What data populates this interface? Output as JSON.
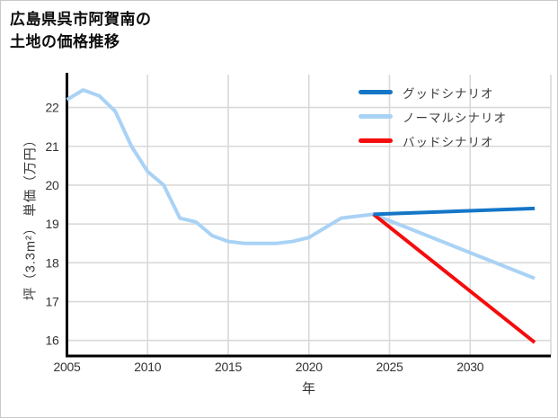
{
  "window": {
    "background": "#ffffff",
    "border_color": "#c9c9c9"
  },
  "header": {
    "title_lines": [
      "広島県呉市阿賀南の",
      "土地の価格推移"
    ]
  },
  "chart_data": {
    "type": "line",
    "title": "広島県呉市阿賀南の土地の価格推移",
    "xlabel": "年",
    "ylabel": "坪（3.3m²） 単価（万円）",
    "x_ticks": [
      2005,
      2010,
      2015,
      2020,
      2025,
      2030
    ],
    "y_ticks": [
      16,
      17,
      18,
      19,
      20,
      21,
      22
    ],
    "xlim": [
      2005,
      2035
    ],
    "ylim": [
      15.6,
      22.8
    ],
    "grid": true,
    "legend_position": "top-right",
    "axis_color": "#000000",
    "grid_color": "#d9d9d9",
    "tick_label_color": "#333333",
    "forecast_start_year": 2024,
    "last_year": 2034,
    "series": [
      {
        "name": "グッドシナリオ",
        "role": "good-scenario-forecast",
        "color": "#1476c7",
        "x": [
          2024,
          2034
        ],
        "y": [
          19.25,
          19.4
        ]
      },
      {
        "name": "ノーマルシナリオ",
        "role": "historical-and-normal-forecast",
        "color": "#a9d2f5",
        "x": [
          2005,
          2006,
          2007,
          2008,
          2009,
          2010,
          2011,
          2012,
          2013,
          2014,
          2015,
          2016,
          2017,
          2018,
          2019,
          2020,
          2021,
          2022,
          2023,
          2024,
          2034
        ],
        "y": [
          22.2,
          22.45,
          22.3,
          21.9,
          21.0,
          20.35,
          20.0,
          19.15,
          19.05,
          18.7,
          18.55,
          18.5,
          18.5,
          18.5,
          18.55,
          18.65,
          18.9,
          19.15,
          19.2,
          19.25,
          17.6
        ]
      },
      {
        "name": "バッドシナリオ",
        "role": "bad-scenario-forecast",
        "color": "#f50c0c",
        "x": [
          2024,
          2034
        ],
        "y": [
          19.25,
          15.95
        ]
      }
    ]
  }
}
